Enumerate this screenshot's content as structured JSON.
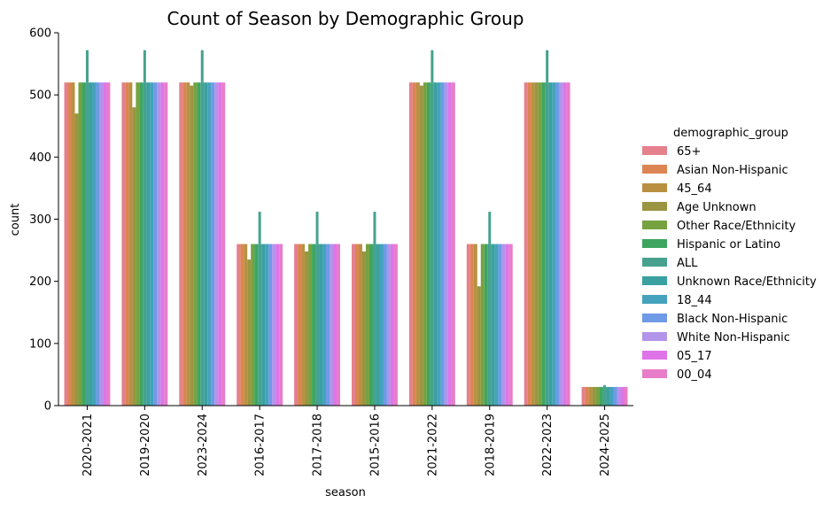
{
  "chart_data": {
    "type": "bar",
    "title": "Count of Season by Demographic Group",
    "xlabel": "season",
    "ylabel": "count",
    "ylim": [
      0,
      600
    ],
    "yticks": [
      0,
      100,
      200,
      300,
      400,
      500,
      600
    ],
    "grid": false,
    "legend": {
      "title": "demographic_group",
      "position": "right"
    },
    "categories": [
      "2020-2021",
      "2019-2020",
      "2023-2024",
      "2016-2017",
      "2017-2018",
      "2015-2016",
      "2021-2022",
      "2018-2019",
      "2022-2023",
      "2024-2025"
    ],
    "series": [
      {
        "name": "65+",
        "color": "#e5808d",
        "values": [
          520,
          520,
          520,
          260,
          260,
          260,
          520,
          260,
          520,
          30
        ]
      },
      {
        "name": "Asian Non-Hispanic",
        "color": "#dc8552",
        "values": [
          520,
          520,
          520,
          260,
          260,
          260,
          520,
          260,
          520,
          30
        ]
      },
      {
        "name": "45_64",
        "color": "#b99042",
        "values": [
          520,
          520,
          520,
          260,
          260,
          260,
          520,
          260,
          520,
          30
        ]
      },
      {
        "name": "Age Unknown",
        "color": "#9b9440",
        "values": [
          470,
          480,
          515,
          235,
          248,
          248,
          515,
          192,
          520,
          30
        ]
      },
      {
        "name": "Other Race/Ethnicity",
        "color": "#76a23f",
        "values": [
          520,
          520,
          520,
          260,
          260,
          260,
          520,
          260,
          520,
          30
        ]
      },
      {
        "name": "Hispanic or Latino",
        "color": "#3ea560",
        "values": [
          520,
          520,
          520,
          260,
          260,
          260,
          520,
          260,
          520,
          30
        ]
      },
      {
        "name": "ALL",
        "color": "#46a28e",
        "values": [
          520,
          520,
          520,
          260,
          260,
          260,
          520,
          260,
          520,
          30
        ],
        "error_top": [
          572,
          572,
          572,
          312,
          312,
          312,
          572,
          312,
          572,
          33
        ]
      },
      {
        "name": "Unknown Race/Ethnicity",
        "color": "#3aa0a0",
        "values": [
          520,
          520,
          520,
          260,
          260,
          260,
          520,
          260,
          520,
          30
        ]
      },
      {
        "name": "18_44",
        "color": "#45a2bd",
        "values": [
          520,
          520,
          520,
          260,
          260,
          260,
          520,
          260,
          520,
          30
        ]
      },
      {
        "name": "Black Non-Hispanic",
        "color": "#6f9ae7",
        "values": [
          520,
          520,
          520,
          260,
          260,
          260,
          520,
          260,
          520,
          30
        ]
      },
      {
        "name": "White Non-Hispanic",
        "color": "#b294ea",
        "values": [
          520,
          520,
          520,
          260,
          260,
          260,
          520,
          260,
          520,
          30
        ]
      },
      {
        "name": "05_17",
        "color": "#df74e8",
        "values": [
          520,
          520,
          520,
          260,
          260,
          260,
          520,
          260,
          520,
          30
        ]
      },
      {
        "name": "00_04",
        "color": "#e77dc8",
        "values": [
          520,
          520,
          520,
          260,
          260,
          260,
          520,
          260,
          520,
          30
        ]
      }
    ]
  }
}
